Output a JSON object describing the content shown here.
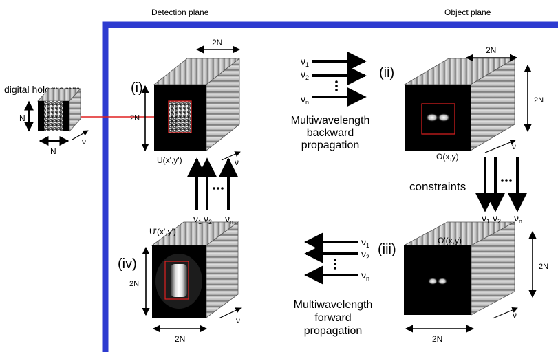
{
  "headers": {
    "detection_plane": "Detection plane",
    "object_plane": "Object plane"
  },
  "hologram": {
    "title": "digital hologramm",
    "n_side": "N",
    "n_bottom": "N",
    "nu": "ν"
  },
  "panels": {
    "i": {
      "roman": "(i)",
      "field": "U(x',y')",
      "dim_top": "2N",
      "dim_side": "2N",
      "nu": "ν"
    },
    "ii": {
      "roman": "(ii)",
      "field": "O(x,y)",
      "dim_top": "2N",
      "dim_side": "2N",
      "nu": "ν"
    },
    "iii": {
      "roman": "(iii)",
      "field": "O'(x,y)",
      "dim_bottom": "2N",
      "dim_side": "2N",
      "nu": "ν"
    },
    "iv": {
      "roman": "(iv)",
      "field": "U'(x',y')",
      "dim_bottom": "2N",
      "dim_side": "2N",
      "nu": "ν"
    }
  },
  "backward": {
    "line1": "Multiwavelength",
    "line2": "backward",
    "line3": "propagation",
    "nu1": "ν",
    "sub1": "1",
    "nu2": "ν",
    "sub2": "2",
    "nun": "ν",
    "subn": "n"
  },
  "forward": {
    "line1": "Multiwavelength",
    "line2": "forward",
    "line3": "propagation",
    "nu1": "ν",
    "sub1": "1",
    "nu2": "ν",
    "sub2": "2",
    "nun": "ν",
    "subn": "n"
  },
  "constraints": {
    "label": "constraints",
    "nu1": "ν",
    "sub1": "1",
    "nu2": "ν",
    "sub2": "2",
    "nun": "ν",
    "subn": "n"
  },
  "up_arrows": {
    "nu1": "ν",
    "sub1": "1",
    "nu2": "ν",
    "sub2": "2",
    "nun": "ν",
    "subn": "n"
  },
  "colors": {
    "frame": "#2d3bd0",
    "highlight": "#e02020",
    "face": "#000000",
    "stripe_light": "#d4d4d4",
    "stripe_dark": "#7a7a7a"
  }
}
